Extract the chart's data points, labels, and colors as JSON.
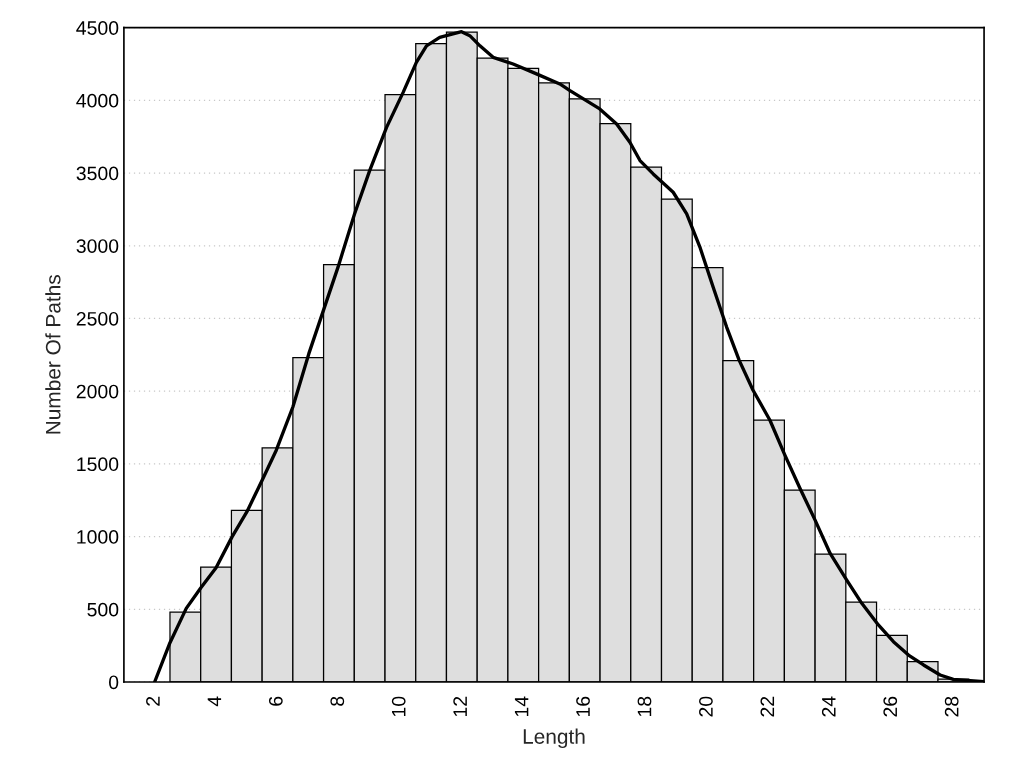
{
  "chart_data": {
    "type": "histogram",
    "xlabel": "Length",
    "ylabel": "Number Of Paths",
    "xlim": [
      1,
      29
    ],
    "ylim": [
      0,
      4500
    ],
    "xticks": [
      2,
      4,
      6,
      8,
      10,
      12,
      14,
      16,
      18,
      20,
      22,
      24,
      26,
      28
    ],
    "yticks": [
      0,
      500,
      1000,
      1500,
      2000,
      2500,
      3000,
      3500,
      4000,
      4500
    ],
    "grid": "y",
    "legend": false,
    "series": [
      {
        "color": "#dedede",
        "bins": [
          2.5,
          3.5,
          4.5,
          5.5,
          6.5,
          7.5,
          8.5,
          9.5,
          10.5,
          11.5,
          12.5,
          13.5,
          14.5,
          15.5,
          16.5,
          17.5,
          18.5,
          19.5,
          20.5,
          21.5,
          22.5,
          23.5,
          24.5,
          25.5,
          26.5,
          27.5,
          28.5
        ],
        "values": [
          480,
          790,
          1180,
          1610,
          2230,
          2870,
          3520,
          4040,
          4390,
          4470,
          4290,
          4220,
          4120,
          4010,
          3840,
          3540,
          3320,
          2850,
          2210,
          1800,
          1320,
          880,
          550,
          320,
          140,
          20
        ]
      },
      {
        "type": "line",
        "color": "#000000",
        "line_style": "solid",
        "marker": "none",
        "x": [
          2,
          2.5,
          3.03,
          3.5,
          4.0,
          4.52,
          5.02,
          5.5,
          5.96,
          6.5,
          7.02,
          7.97,
          8.51,
          9.0,
          9.55,
          10.09,
          10.52,
          10.85,
          11.28,
          11.99,
          12.26,
          12.59,
          13.02,
          13.67,
          14.43,
          15.19,
          15.52,
          16.49,
          17.04,
          17.47,
          17.8,
          18.23,
          18.88,
          19.32,
          19.75,
          20.18,
          20.62,
          21.03,
          21.48,
          22.03,
          22.52,
          23.01,
          23.5,
          23.99,
          24.53,
          25.02,
          25.56,
          26.05,
          26.54,
          27.03,
          27.57,
          28.0,
          29.0
        ],
        "values": [
          0,
          270,
          506,
          646,
          785,
          998,
          1177,
          1388,
          1594,
          1891,
          2258,
          2853,
          3220,
          3517,
          3814,
          4055,
          4261,
          4375,
          4433,
          4472,
          4445,
          4375,
          4296,
          4250,
          4182,
          4113,
          4067,
          3941,
          3838,
          3712,
          3586,
          3494,
          3368,
          3220,
          2991,
          2716,
          2441,
          2212,
          2006,
          1800,
          1559,
          1331,
          1113,
          884,
          701,
          541,
          392,
          277,
          185,
          117,
          48,
          18,
          2
        ]
      }
    ]
  }
}
